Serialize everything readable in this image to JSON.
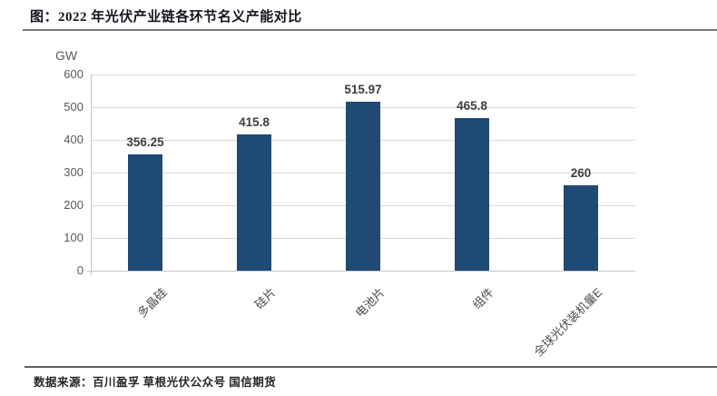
{
  "header": {
    "title": "图：2022 年光伏产业链各环节名义产能对比"
  },
  "footer": {
    "source": "数据来源：百川盈孚 草根光伏公众号 国信期货"
  },
  "colors": {
    "bar": "#1f4a73",
    "gridline": "#d9d9d9",
    "axis_line": "#c6c6c6",
    "tick_text": "#595959",
    "value_text": "#3f3f3f",
    "title_text": "#14141f"
  },
  "chart_data": {
    "type": "bar",
    "title": "2022 年光伏产业链各环节名义产能对比",
    "categories": [
      "多晶硅",
      "硅片",
      "电池片",
      "组件",
      "全球光伏装机量E"
    ],
    "values": [
      356.25,
      415.8,
      515.97,
      465.8,
      260
    ],
    "value_labels": [
      "356.25",
      "415.8",
      "515.97",
      "465.8",
      "260"
    ],
    "xlabel": "",
    "ylabel": "GW",
    "ylim": [
      0,
      600
    ],
    "yticks": [
      0,
      100,
      200,
      300,
      400,
      500,
      600
    ],
    "grid": true,
    "legend_position": "none",
    "bar_color": "#1f4a73"
  }
}
